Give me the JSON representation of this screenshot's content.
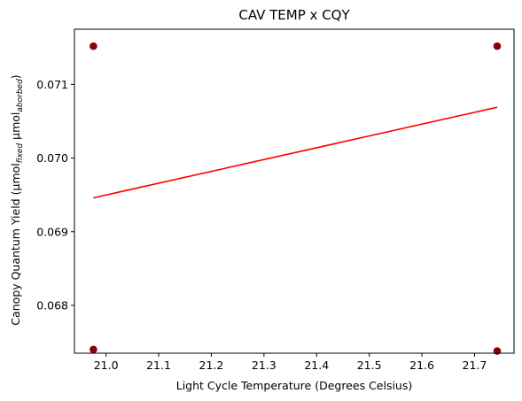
{
  "chart_data": {
    "type": "scatter",
    "title": "CAV TEMP x CQY",
    "xlabel": "Light Cycle Temperature (Degrees Celsius)",
    "ylabel": {
      "prefix": "Canopy Quantum Yield (µmol",
      "sub1": "fixed",
      "middle": " µmol",
      "sub2": "aborbed",
      "suffix": ")"
    },
    "xlim": [
      20.94,
      21.775
    ],
    "ylim": [
      0.06735,
      0.07175
    ],
    "xticks": [
      21.0,
      21.1,
      21.2,
      21.3,
      21.4,
      21.5,
      21.6,
      21.7
    ],
    "xtick_labels": [
      "21.0",
      "21.1",
      "21.2",
      "21.3",
      "21.4",
      "21.5",
      "21.6",
      "21.7"
    ],
    "yticks": [
      0.068,
      0.069,
      0.07,
      0.071
    ],
    "ytick_labels": [
      "0.068",
      "0.069",
      "0.070",
      "0.071"
    ],
    "grid": false,
    "points": [
      {
        "x": 20.976,
        "y": 0.07152
      },
      {
        "x": 20.976,
        "y": 0.0674
      },
      {
        "x": 21.743,
        "y": 0.07152
      },
      {
        "x": 21.743,
        "y": 0.06738
      }
    ],
    "trendline": {
      "x": [
        20.976,
        21.743
      ],
      "y": [
        0.06946,
        0.07069
      ]
    },
    "colors": {
      "points": "#8b0000",
      "trendline": "#ff0000"
    }
  }
}
